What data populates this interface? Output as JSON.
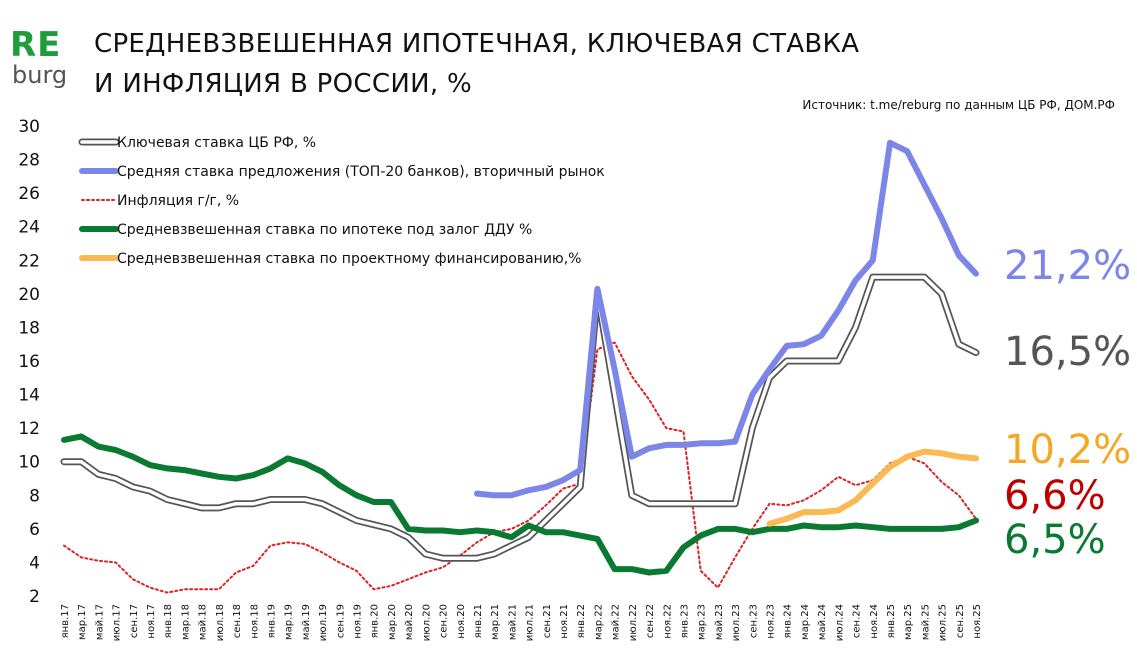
{
  "logo": {
    "top": "RE",
    "bottom": "burg"
  },
  "header": {
    "title_line1": "СРЕДНЕВЗВЕШЕННАЯ ИПОТЕЧНАЯ, КЛЮЧЕВАЯ СТАВКА",
    "title_line2": "И ИНФЛЯЦИЯ В РОССИИ, %",
    "source": "Источник: t.me/reburg по данным ЦБ РФ, ДОМ.РФ"
  },
  "callouts": [
    {
      "text": "21,2%",
      "color": "#7b86e8"
    },
    {
      "text": "16,5%",
      "color": "#555555"
    },
    {
      "text": "10,2%",
      "color": "#f5a623"
    },
    {
      "text": "6,6%",
      "color": "#c00000"
    },
    {
      "text": "6,5%",
      "color": "#0a7a33"
    }
  ],
  "chart_data": {
    "type": "line",
    "title": "СРЕДНЕВЗВЕШЕННАЯ ИПОТЕЧНАЯ, КЛЮЧЕВАЯ СТАВКА И ИНФЛЯЦИЯ В РОССИИ, %",
    "ylim": [
      2,
      30
    ],
    "yticks": [
      "2",
      "4",
      "6",
      "8",
      "10",
      "12",
      "14",
      "16",
      "18",
      "20",
      "22",
      "24",
      "26",
      "28",
      "30"
    ],
    "grid": false,
    "legend_position": "top-left",
    "categories": [
      "янв.17",
      "мар.17",
      "май.17",
      "июл.17",
      "сен.17",
      "ноя.17",
      "янв.18",
      "мар.18",
      "май.18",
      "июл.18",
      "сен.18",
      "ноя.18",
      "янв.19",
      "мар.19",
      "май.19",
      "июл.19",
      "сен.19",
      "ноя.19",
      "янв.20",
      "мар.20",
      "май.20",
      "июл.20",
      "сен.20",
      "ноя.20",
      "янв.21",
      "мар.21",
      "май.21",
      "июл.21",
      "сен.21",
      "ноя.21",
      "янв.22",
      "мар.22",
      "май.22",
      "июл.22",
      "сен.22",
      "ноя.22",
      "янв.23",
      "мар.23",
      "май.23",
      "июл.23",
      "сен.23",
      "ноя.23",
      "янв.24",
      "мар.24",
      "май.24",
      "июл.24",
      "сен.24",
      "ноя.24",
      "янв.25",
      "мар.25",
      "май.25",
      "июл.25",
      "сен.25",
      "ноя.25"
    ],
    "series": [
      {
        "name": "Ключевая ставка ЦБ РФ, %",
        "color": "#555555",
        "style": "double",
        "values": [
          10.0,
          10.0,
          9.25,
          9.0,
          8.5,
          8.25,
          7.75,
          7.5,
          7.25,
          7.25,
          7.5,
          7.5,
          7.75,
          7.75,
          7.75,
          7.5,
          7.0,
          6.5,
          6.25,
          6.0,
          5.5,
          4.5,
          4.25,
          4.25,
          4.25,
          4.5,
          5.0,
          5.5,
          6.5,
          7.5,
          8.5,
          20.0,
          14.0,
          8.0,
          7.5,
          7.5,
          7.5,
          7.5,
          7.5,
          7.5,
          12.0,
          15.0,
          16.0,
          16.0,
          16.0,
          16.0,
          18.0,
          21.0,
          21.0,
          21.0,
          21.0,
          20.0,
          17.0,
          16.5
        ]
      },
      {
        "name": "Средняя ставка предложения (ТОП-20 банков), вторичный рынок",
        "color": "#7b86e8",
        "style": "solid-thick",
        "values": [
          null,
          null,
          null,
          null,
          null,
          null,
          null,
          null,
          null,
          null,
          null,
          null,
          null,
          null,
          null,
          null,
          null,
          null,
          null,
          null,
          null,
          null,
          null,
          null,
          8.1,
          8.0,
          8.0,
          8.3,
          8.5,
          8.9,
          9.5,
          20.3,
          15.5,
          10.3,
          10.8,
          11.0,
          11.0,
          11.1,
          11.1,
          11.2,
          14.0,
          15.5,
          16.9,
          17.0,
          17.5,
          19.0,
          20.8,
          22.0,
          29.0,
          28.5,
          26.5,
          24.5,
          22.3,
          21.2
        ]
      },
      {
        "name": "Инфляция г/г,  %",
        "color": "#e02020",
        "style": "dotted",
        "values": [
          5.0,
          4.3,
          4.1,
          4.0,
          3.0,
          2.5,
          2.2,
          2.4,
          2.4,
          2.4,
          3.4,
          3.8,
          5.0,
          5.2,
          5.1,
          4.6,
          4.0,
          3.5,
          2.4,
          2.6,
          3.0,
          3.4,
          3.7,
          4.4,
          5.2,
          5.8,
          6.0,
          6.5,
          7.4,
          8.4,
          8.7,
          16.7,
          17.1,
          15.1,
          13.7,
          12.0,
          11.8,
          3.5,
          2.5,
          4.3,
          6.0,
          7.5,
          7.4,
          7.7,
          8.3,
          9.1,
          8.6,
          8.9,
          9.9,
          10.3,
          9.9,
          8.8,
          8.0,
          6.6
        ]
      },
      {
        "name": "Средневзвешенная ставка по ипотеке под залог ДДУ %",
        "color": "#0a7a33",
        "style": "solid-thick",
        "values": [
          11.3,
          11.5,
          10.9,
          10.7,
          10.3,
          9.8,
          9.6,
          9.5,
          9.3,
          9.1,
          9.0,
          9.2,
          9.6,
          10.2,
          9.9,
          9.4,
          8.6,
          8.0,
          7.6,
          7.6,
          6.0,
          5.9,
          5.9,
          5.8,
          5.9,
          5.8,
          5.5,
          6.2,
          5.8,
          5.8,
          5.6,
          5.4,
          3.6,
          3.6,
          3.4,
          3.5,
          4.9,
          5.6,
          6.0,
          6.0,
          5.8,
          6.0,
          6.0,
          6.2,
          6.1,
          6.1,
          6.2,
          6.1,
          6.0,
          6.0,
          6.0,
          6.0,
          6.1,
          6.5
        ]
      },
      {
        "name": "Средневзвешенная ставка по проектному финансированию,%",
        "color": "#fbb954",
        "style": "solid-thick",
        "values": [
          null,
          null,
          null,
          null,
          null,
          null,
          null,
          null,
          null,
          null,
          null,
          null,
          null,
          null,
          null,
          null,
          null,
          null,
          null,
          null,
          null,
          null,
          null,
          null,
          null,
          null,
          null,
          null,
          null,
          null,
          null,
          null,
          null,
          null,
          null,
          null,
          null,
          null,
          null,
          null,
          null,
          6.3,
          6.6,
          7.0,
          7.0,
          7.1,
          7.7,
          8.7,
          9.7,
          10.3,
          10.6,
          10.5,
          10.3,
          10.2
        ]
      }
    ]
  }
}
